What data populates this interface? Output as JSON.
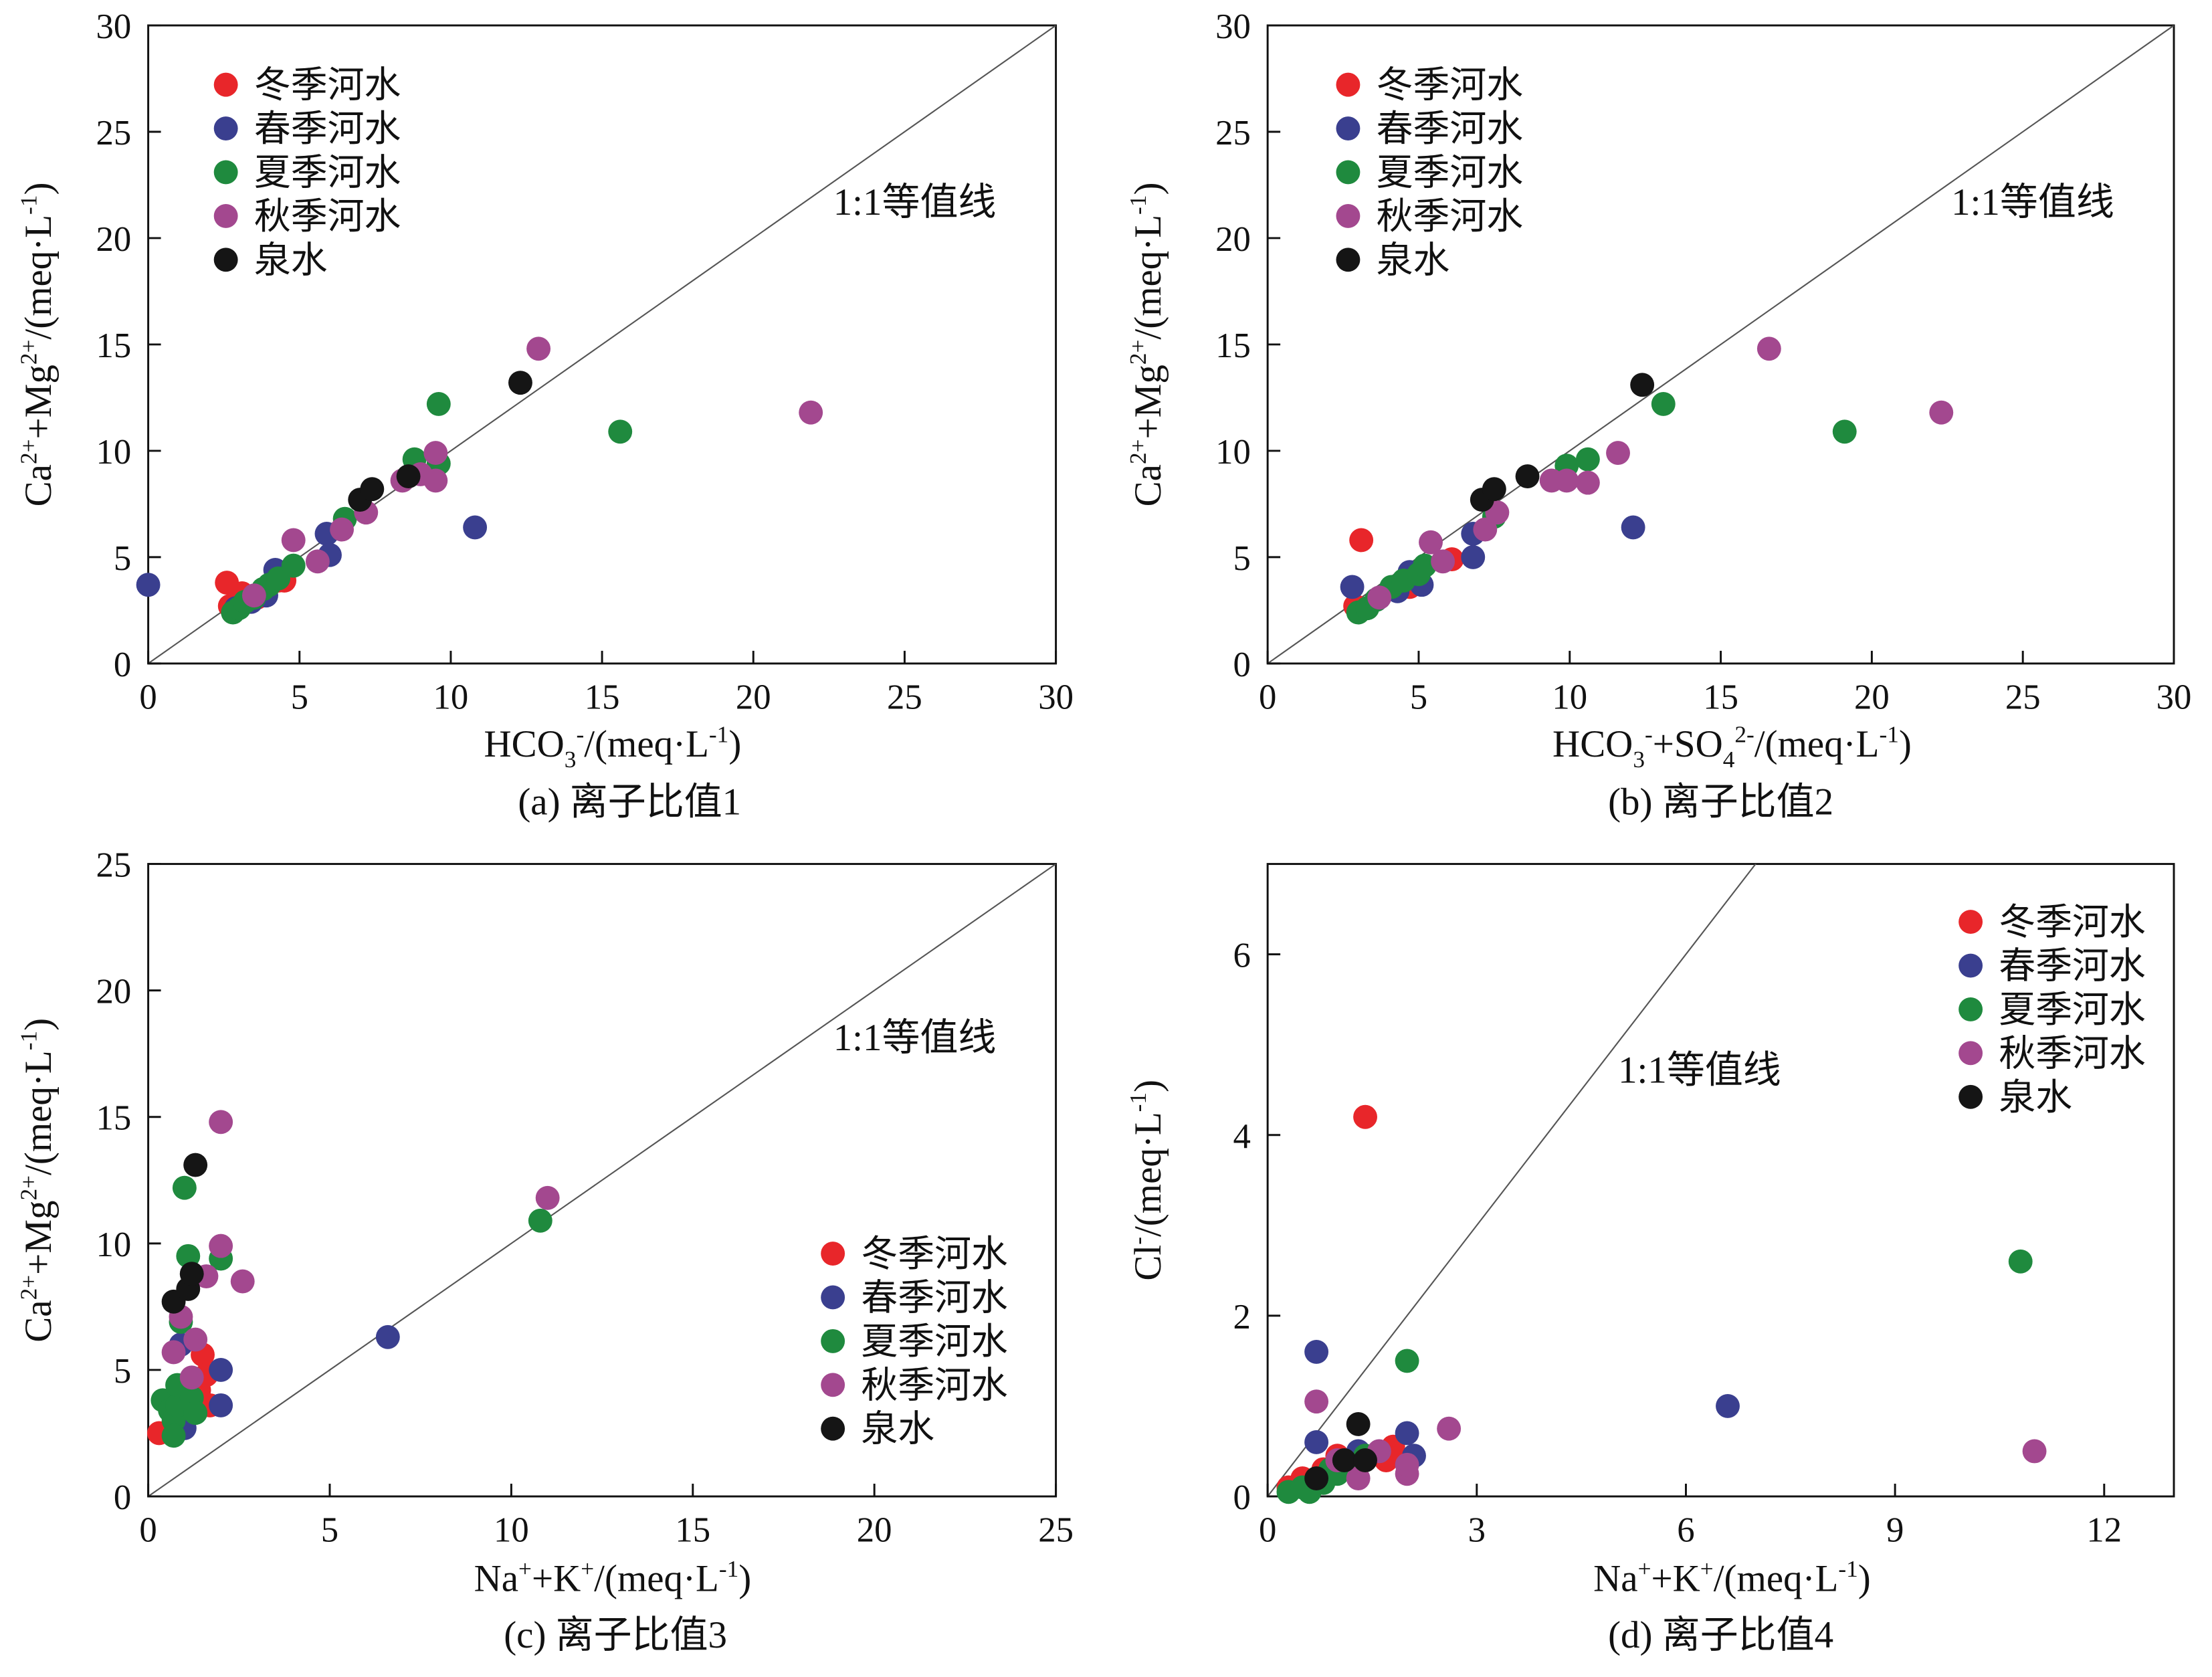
{
  "colors": {
    "winter": "#e8262a",
    "spring": "#3a3f8f",
    "summer": "#1f8a3e",
    "autumn": "#a3488f",
    "spring_water": "#151515"
  },
  "chart_data": [
    {
      "type": "scatter",
      "caption": "(a) 离子比值1",
      "xlabel": "HCO3-/(meq·L-1)",
      "ylabel": "Ca2++Mg2+/(meq·L-1)",
      "xlim": [
        0,
        30
      ],
      "ylim": [
        0,
        30
      ],
      "xticks": [
        0,
        5,
        10,
        15,
        20,
        25,
        30
      ],
      "yticks": [
        0,
        5,
        10,
        15,
        20,
        25,
        30
      ],
      "ref_line_label": "1:1等值线",
      "legend_position": "top-left",
      "series": [
        {
          "name": "冬季河水",
          "color_key": "winter",
          "points": [
            [
              2.6,
              3.8
            ],
            [
              2.7,
              2.7
            ],
            [
              3.1,
              3.3
            ],
            [
              3.6,
              3.1
            ],
            [
              4.3,
              3.9
            ],
            [
              4.5,
              3.9
            ]
          ]
        },
        {
          "name": "春季河水",
          "color_key": "spring",
          "points": [
            [
              0.0,
              3.7
            ],
            [
              2.9,
              2.6
            ],
            [
              3.4,
              2.9
            ],
            [
              3.9,
              3.2
            ],
            [
              4.2,
              4.4
            ],
            [
              5.9,
              6.1
            ],
            [
              6.0,
              5.1
            ],
            [
              10.8,
              6.4
            ]
          ]
        },
        {
          "name": "夏季河水",
          "color_key": "summer",
          "points": [
            [
              2.8,
              2.4
            ],
            [
              3.0,
              2.6
            ],
            [
              3.2,
              2.9
            ],
            [
              3.5,
              3.1
            ],
            [
              3.8,
              3.5
            ],
            [
              4.0,
              3.7
            ],
            [
              4.3,
              4.0
            ],
            [
              4.8,
              4.6
            ],
            [
              6.5,
              6.8
            ],
            [
              8.8,
              9.6
            ],
            [
              9.6,
              9.4
            ],
            [
              9.6,
              12.2
            ],
            [
              15.6,
              10.9
            ]
          ]
        },
        {
          "name": "秋季河水",
          "color_key": "autumn",
          "points": [
            [
              3.5,
              3.2
            ],
            [
              4.8,
              5.8
            ],
            [
              5.6,
              4.8
            ],
            [
              6.4,
              6.3
            ],
            [
              7.2,
              7.1
            ],
            [
              8.4,
              8.6
            ],
            [
              9.0,
              8.9
            ],
            [
              9.5,
              8.6
            ],
            [
              9.5,
              9.9
            ],
            [
              12.9,
              14.8
            ],
            [
              21.9,
              11.8
            ]
          ]
        },
        {
          "name": "泉水",
          "color_key": "spring_water",
          "points": [
            [
              7.0,
              7.7
            ],
            [
              7.4,
              8.2
            ],
            [
              8.6,
              8.8
            ],
            [
              12.3,
              13.2
            ]
          ]
        }
      ]
    },
    {
      "type": "scatter",
      "caption": "(b) 离子比值2",
      "xlabel": "HCO3-+SO42-/(meq·L-1)",
      "ylabel": "Ca2++Mg2+/(meq·L-1)",
      "xlim": [
        0,
        30
      ],
      "ylim": [
        0,
        30
      ],
      "xticks": [
        0,
        5,
        10,
        15,
        20,
        25,
        30
      ],
      "yticks": [
        0,
        5,
        10,
        15,
        20,
        25,
        30
      ],
      "ref_line_label": "1:1等值线",
      "legend_position": "top-left",
      "series": [
        {
          "name": "冬季河水",
          "color_key": "winter",
          "points": [
            [
              2.9,
              2.7
            ],
            [
              3.1,
              5.8
            ],
            [
              4.7,
              3.6
            ],
            [
              6.1,
              4.9
            ],
            [
              4.9,
              3.8
            ]
          ]
        },
        {
          "name": "春季河水",
          "color_key": "spring",
          "points": [
            [
              2.8,
              3.6
            ],
            [
              3.6,
              3.0
            ],
            [
              4.3,
              3.4
            ],
            [
              4.7,
              4.3
            ],
            [
              5.1,
              3.7
            ],
            [
              6.8,
              6.1
            ],
            [
              6.8,
              5.0
            ],
            [
              12.1,
              6.4
            ]
          ]
        },
        {
          "name": "夏季河水",
          "color_key": "summer",
          "points": [
            [
              3.0,
              2.4
            ],
            [
              3.3,
              2.6
            ],
            [
              3.6,
              3.0
            ],
            [
              4.1,
              3.6
            ],
            [
              4.5,
              3.9
            ],
            [
              5.0,
              4.2
            ],
            [
              5.2,
              4.6
            ],
            [
              7.5,
              6.9
            ],
            [
              9.9,
              9.3
            ],
            [
              10.6,
              9.6
            ],
            [
              13.1,
              12.2
            ],
            [
              19.1,
              10.9
            ]
          ]
        },
        {
          "name": "秋季河水",
          "color_key": "autumn",
          "points": [
            [
              3.7,
              3.1
            ],
            [
              5.4,
              5.7
            ],
            [
              5.8,
              4.8
            ],
            [
              7.2,
              6.3
            ],
            [
              7.6,
              7.1
            ],
            [
              9.4,
              8.6
            ],
            [
              9.9,
              8.6
            ],
            [
              10.6,
              8.5
            ],
            [
              11.6,
              9.9
            ],
            [
              16.6,
              14.8
            ],
            [
              22.3,
              11.8
            ]
          ]
        },
        {
          "name": "泉水",
          "color_key": "spring_water",
          "points": [
            [
              7.1,
              7.7
            ],
            [
              7.5,
              8.2
            ],
            [
              8.6,
              8.8
            ],
            [
              12.4,
              13.1
            ]
          ]
        }
      ]
    },
    {
      "type": "scatter",
      "caption": "(c) 离子比值3",
      "xlabel": "Na++K+/(meq·L-1)",
      "ylabel": "Ca2++Mg2+/(meq·L-1)",
      "xlim": [
        0,
        25
      ],
      "ylim": [
        0,
        25
      ],
      "xticks": [
        0,
        5,
        10,
        15,
        20,
        25
      ],
      "yticks": [
        0,
        5,
        10,
        15,
        20,
        25
      ],
      "ref_line_label": "1:1等值线",
      "legend_position": "bottom-right",
      "series": [
        {
          "name": "冬季河水",
          "color_key": "winter",
          "points": [
            [
              0.3,
              2.5
            ],
            [
              0.7,
              2.9
            ],
            [
              1.0,
              3.6
            ],
            [
              1.4,
              4.2
            ],
            [
              1.5,
              5.6
            ],
            [
              1.6,
              4.8
            ],
            [
              1.7,
              3.6
            ]
          ]
        },
        {
          "name": "春季河水",
          "color_key": "spring",
          "points": [
            [
              0.8,
              3.0
            ],
            [
              0.9,
              6.0
            ],
            [
              1.0,
              2.7
            ],
            [
              1.2,
              3.4
            ],
            [
              2.0,
              5.0
            ],
            [
              2.0,
              3.6
            ],
            [
              6.6,
              6.3
            ]
          ]
        },
        {
          "name": "夏季河水",
          "color_key": "summer",
          "points": [
            [
              0.4,
              3.8
            ],
            [
              0.6,
              3.4
            ],
            [
              0.7,
              3.0
            ],
            [
              0.7,
              2.4
            ],
            [
              0.8,
              3.6
            ],
            [
              0.8,
              4.4
            ],
            [
              0.9,
              6.9
            ],
            [
              1.0,
              12.2
            ],
            [
              1.1,
              9.5
            ],
            [
              1.2,
              3.9
            ],
            [
              1.3,
              3.3
            ],
            [
              2.0,
              9.4
            ],
            [
              10.8,
              10.9
            ]
          ]
        },
        {
          "name": "秋季河水",
          "color_key": "autumn",
          "points": [
            [
              0.7,
              5.7
            ],
            [
              0.9,
              7.1
            ],
            [
              1.2,
              4.7
            ],
            [
              1.3,
              6.2
            ],
            [
              1.6,
              8.7
            ],
            [
              2.0,
              9.9
            ],
            [
              2.0,
              14.8
            ],
            [
              2.6,
              8.5
            ],
            [
              11.0,
              11.8
            ]
          ]
        },
        {
          "name": "泉水",
          "color_key": "spring_water",
          "points": [
            [
              0.7,
              7.7
            ],
            [
              1.1,
              8.2
            ],
            [
              1.2,
              8.8
            ],
            [
              1.3,
              13.1
            ]
          ]
        }
      ]
    },
    {
      "type": "scatter",
      "caption": "(d) 离子比值4",
      "xlabel": "Na++K+/(meq·L-1)",
      "ylabel": "Cl-/(meq·L-1)",
      "xlim": [
        0,
        13
      ],
      "ylim": [
        0,
        7
      ],
      "xticks": [
        0,
        3,
        6,
        9,
        12
      ],
      "yticks": [
        0,
        2,
        4,
        6
      ],
      "ref_line_label": "1:1等值线",
      "legend_position": "top-right",
      "series": [
        {
          "name": "冬季河水",
          "color_key": "winter",
          "points": [
            [
              0.3,
              0.1
            ],
            [
              0.5,
              0.2
            ],
            [
              0.8,
              0.3
            ],
            [
              1.0,
              0.45
            ],
            [
              1.3,
              0.4
            ],
            [
              1.4,
              4.2
            ],
            [
              1.7,
              0.4
            ],
            [
              1.8,
              0.55
            ]
          ]
        },
        {
          "name": "春季河水",
          "color_key": "spring",
          "points": [
            [
              0.7,
              1.6
            ],
            [
              0.7,
              0.6
            ],
            [
              1.0,
              0.3
            ],
            [
              1.3,
              0.5
            ],
            [
              2.0,
              0.7
            ],
            [
              2.1,
              0.45
            ],
            [
              6.6,
              1.0
            ]
          ]
        },
        {
          "name": "夏季河水",
          "color_key": "summer",
          "points": [
            [
              0.3,
              0.05
            ],
            [
              0.5,
              0.1
            ],
            [
              0.6,
              0.05
            ],
            [
              0.7,
              0.2
            ],
            [
              0.8,
              0.15
            ],
            [
              0.9,
              0.3
            ],
            [
              1.0,
              0.25
            ],
            [
              1.2,
              0.35
            ],
            [
              1.4,
              0.45
            ],
            [
              2.0,
              1.5
            ],
            [
              10.8,
              2.6
            ]
          ]
        },
        {
          "name": "秋季河水",
          "color_key": "autumn",
          "points": [
            [
              0.7,
              1.05
            ],
            [
              1.0,
              0.4
            ],
            [
              1.3,
              0.2
            ],
            [
              1.6,
              0.5
            ],
            [
              2.0,
              0.25
            ],
            [
              2.0,
              0.35
            ],
            [
              2.6,
              0.75
            ],
            [
              11.0,
              0.5
            ]
          ]
        },
        {
          "name": "泉水",
          "color_key": "spring_water",
          "points": [
            [
              0.7,
              0.2
            ],
            [
              1.1,
              0.4
            ],
            [
              1.3,
              0.8
            ],
            [
              1.4,
              0.4
            ]
          ]
        }
      ]
    }
  ]
}
